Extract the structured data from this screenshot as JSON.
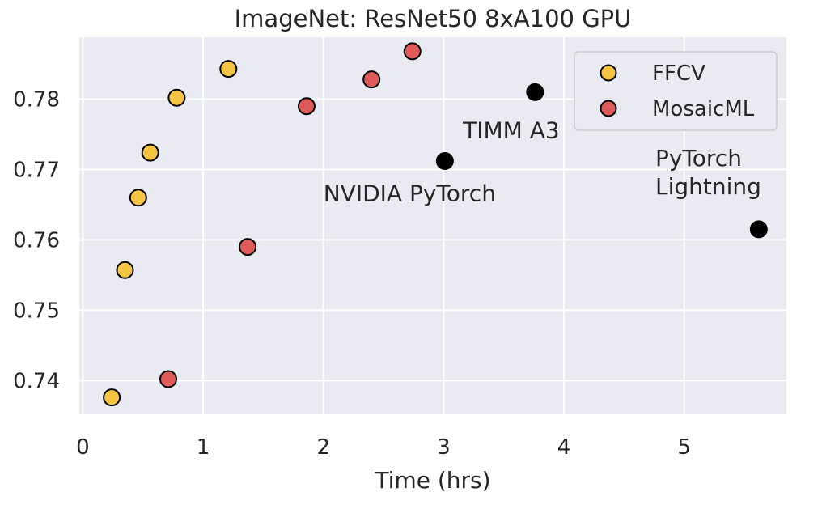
{
  "chart_data": {
    "type": "scatter",
    "title": "ImageNet: ResNet50 8xA100 GPU",
    "xlabel": "Time (hrs)",
    "ylabel": "",
    "xlim": [
      -0.03,
      5.85
    ],
    "ylim": [
      0.7352,
      0.7888
    ],
    "xticks": [
      0,
      1,
      2,
      3,
      4,
      5
    ],
    "xtick_labels": [
      "0",
      "1",
      "2",
      "3",
      "4",
      "5"
    ],
    "yticks": [
      0.74,
      0.75,
      0.76,
      0.77,
      0.78
    ],
    "ytick_labels": [
      "0.74",
      "0.75",
      "0.76",
      "0.77",
      "0.78"
    ],
    "grid": true,
    "legend_position": "top-right",
    "series": [
      {
        "name": "FFCV",
        "color": "#f5c443",
        "points": [
          {
            "x": 0.24,
            "y": 0.7376
          },
          {
            "x": 0.35,
            "y": 0.7557
          },
          {
            "x": 0.46,
            "y": 0.766
          },
          {
            "x": 0.56,
            "y": 0.7724
          },
          {
            "x": 0.78,
            "y": 0.7802
          },
          {
            "x": 1.21,
            "y": 0.7843
          }
        ]
      },
      {
        "name": "MosaicML",
        "color": "#e05a5a",
        "points": [
          {
            "x": 0.71,
            "y": 0.7402
          },
          {
            "x": 1.37,
            "y": 0.759
          },
          {
            "x": 1.86,
            "y": 0.779
          },
          {
            "x": 2.4,
            "y": 0.7828
          },
          {
            "x": 2.74,
            "y": 0.7868
          }
        ]
      },
      {
        "color": "#000000",
        "show_in_legend": false,
        "points": [
          {
            "x": 3.01,
            "y": 0.7712
          },
          {
            "x": 3.76,
            "y": 0.781
          },
          {
            "x": 5.62,
            "y": 0.7615
          }
        ]
      }
    ],
    "annotations": [
      {
        "text": "TIMM A3",
        "x": 3.16,
        "y": 0.7745
      },
      {
        "text": "NVIDIA PyTorch",
        "x": 2.0,
        "y": 0.7655
      },
      {
        "text": "PyTorch",
        "x": 4.76,
        "y": 0.7705
      },
      {
        "text": "Lightning",
        "x": 4.76,
        "y": 0.7665
      }
    ]
  }
}
